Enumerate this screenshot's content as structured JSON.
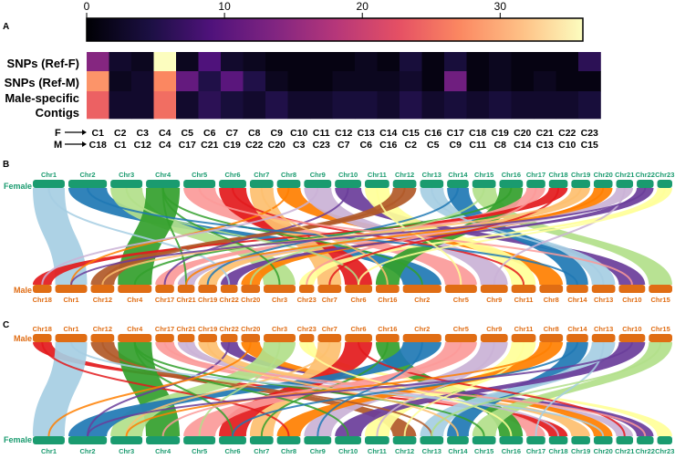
{
  "panel_labels": [
    "A",
    "B",
    "C"
  ],
  "colorbar": {
    "ticks": [
      "0",
      "10",
      "20",
      "30"
    ],
    "tick_values": [
      0,
      10,
      20,
      30
    ],
    "max": 36
  },
  "heatmap": {
    "row_labels": [
      "SNPs (Ref-F)",
      "SNPs (Ref-M)",
      "Male-specific",
      "Contigs"
    ],
    "f_prefix": "F",
    "m_prefix": "M",
    "f_chromosomes": [
      "C1",
      "C2",
      "C3",
      "C4",
      "C5",
      "C6",
      "C7",
      "C8",
      "C9",
      "C10",
      "C11",
      "C12",
      "C13",
      "C14",
      "C15",
      "C16",
      "C17",
      "C18",
      "C19",
      "C20",
      "C21",
      "C22",
      "C23"
    ],
    "m_chromosomes": [
      "C18",
      "C1",
      "C12",
      "C4",
      "C17",
      "C21",
      "C19",
      "C22",
      "C20",
      "C3",
      "C23",
      "C7",
      "C6",
      "C16",
      "C2",
      "C5",
      "C9",
      "C11",
      "C8",
      "C14",
      "C13",
      "C10",
      "C15"
    ],
    "rows": [
      [
        14,
        3,
        2,
        36,
        2,
        9,
        3,
        2,
        1,
        1,
        1,
        1,
        2,
        1,
        4,
        1,
        4,
        1,
        2,
        1,
        1,
        1,
        6
      ],
      [
        28,
        2,
        3,
        27,
        11,
        5,
        10,
        5,
        2,
        1,
        1,
        2,
        2,
        2,
        3,
        1,
        12,
        1,
        2,
        1,
        2,
        1,
        1
      ],
      [
        24,
        3,
        3,
        25,
        3,
        6,
        4,
        3,
        5,
        3,
        3,
        4,
        4,
        3,
        5,
        3,
        4,
        3,
        4,
        3,
        3,
        3,
        4
      ]
    ]
  },
  "panel_b": {
    "top_label": "Female",
    "bottom_label": "Male",
    "top_chromosomes": [
      "Chr1",
      "Chr2",
      "Chr3",
      "Chr4",
      "Chr5",
      "Chr6",
      "Chr7",
      "Chr8",
      "Chr9",
      "Chr10",
      "Chr11",
      "Chr12",
      "Chr13",
      "Chr14",
      "Chr15",
      "Chr16",
      "Chr17",
      "Chr18",
      "Chr19",
      "Chr20",
      "Chr21",
      "Chr22",
      "Chr23"
    ],
    "bottom_chromosomes": [
      "Chr18",
      "Chr1",
      "Chr12",
      "Chr4",
      "Chr17",
      "Chr21",
      "Chr19",
      "Chr22",
      "Chr20",
      "Chr3",
      "Chr23",
      "Chr7",
      "Chr6",
      "Chr16",
      "Chr2",
      "Chr5",
      "Chr9",
      "Chr11",
      "Chr8",
      "Chr14",
      "Chr13",
      "Chr10",
      "Chr15"
    ]
  },
  "panel_c": {
    "top_label": "Male",
    "bottom_label": "Female",
    "top_chromosomes": [
      "Chr18",
      "Chr1",
      "Chr12",
      "Chr4",
      "Chr17",
      "Chr21",
      "Chr19",
      "Chr22",
      "Chr20",
      "Chr3",
      "Chr23",
      "Chr7",
      "Chr6",
      "Chr16",
      "Chr2",
      "Chr5",
      "Chr9",
      "Chr11",
      "Chr8",
      "Chr14",
      "Chr13",
      "Chr10",
      "Chr15"
    ],
    "bottom_chromosomes": [
      "Chr1",
      "Chr2",
      "Chr3",
      "Chr4",
      "Chr5",
      "Chr6",
      "Chr7",
      "Chr8",
      "Chr9",
      "Chr10",
      "Chr11",
      "Chr12",
      "Chr13",
      "Chr14",
      "Chr15",
      "Chr16",
      "Chr17",
      "Chr18",
      "Chr19",
      "Chr20",
      "Chr21",
      "Chr22",
      "Chr23"
    ]
  },
  "colors": {
    "female_track": "#1a9b6f",
    "male_track": "#e06d14",
    "female_text": "#1a9b6f",
    "male_text": "#e06d14",
    "chromosome_palette": [
      "#a6cee3",
      "#1f78b4",
      "#b2df8a",
      "#33a02c",
      "#fb9a99",
      "#e31a1c",
      "#fdbf6f",
      "#ff7f00",
      "#cab2d6",
      "#6a3d9a",
      "#ffff99",
      "#b15928",
      "#a6cee3",
      "#1f78b4",
      "#b2df8a",
      "#33a02c",
      "#fb9a99",
      "#e31a1c",
      "#fdbf6f",
      "#ff7f00",
      "#cab2d6",
      "#6a3d9a",
      "#ffff99"
    ]
  }
}
